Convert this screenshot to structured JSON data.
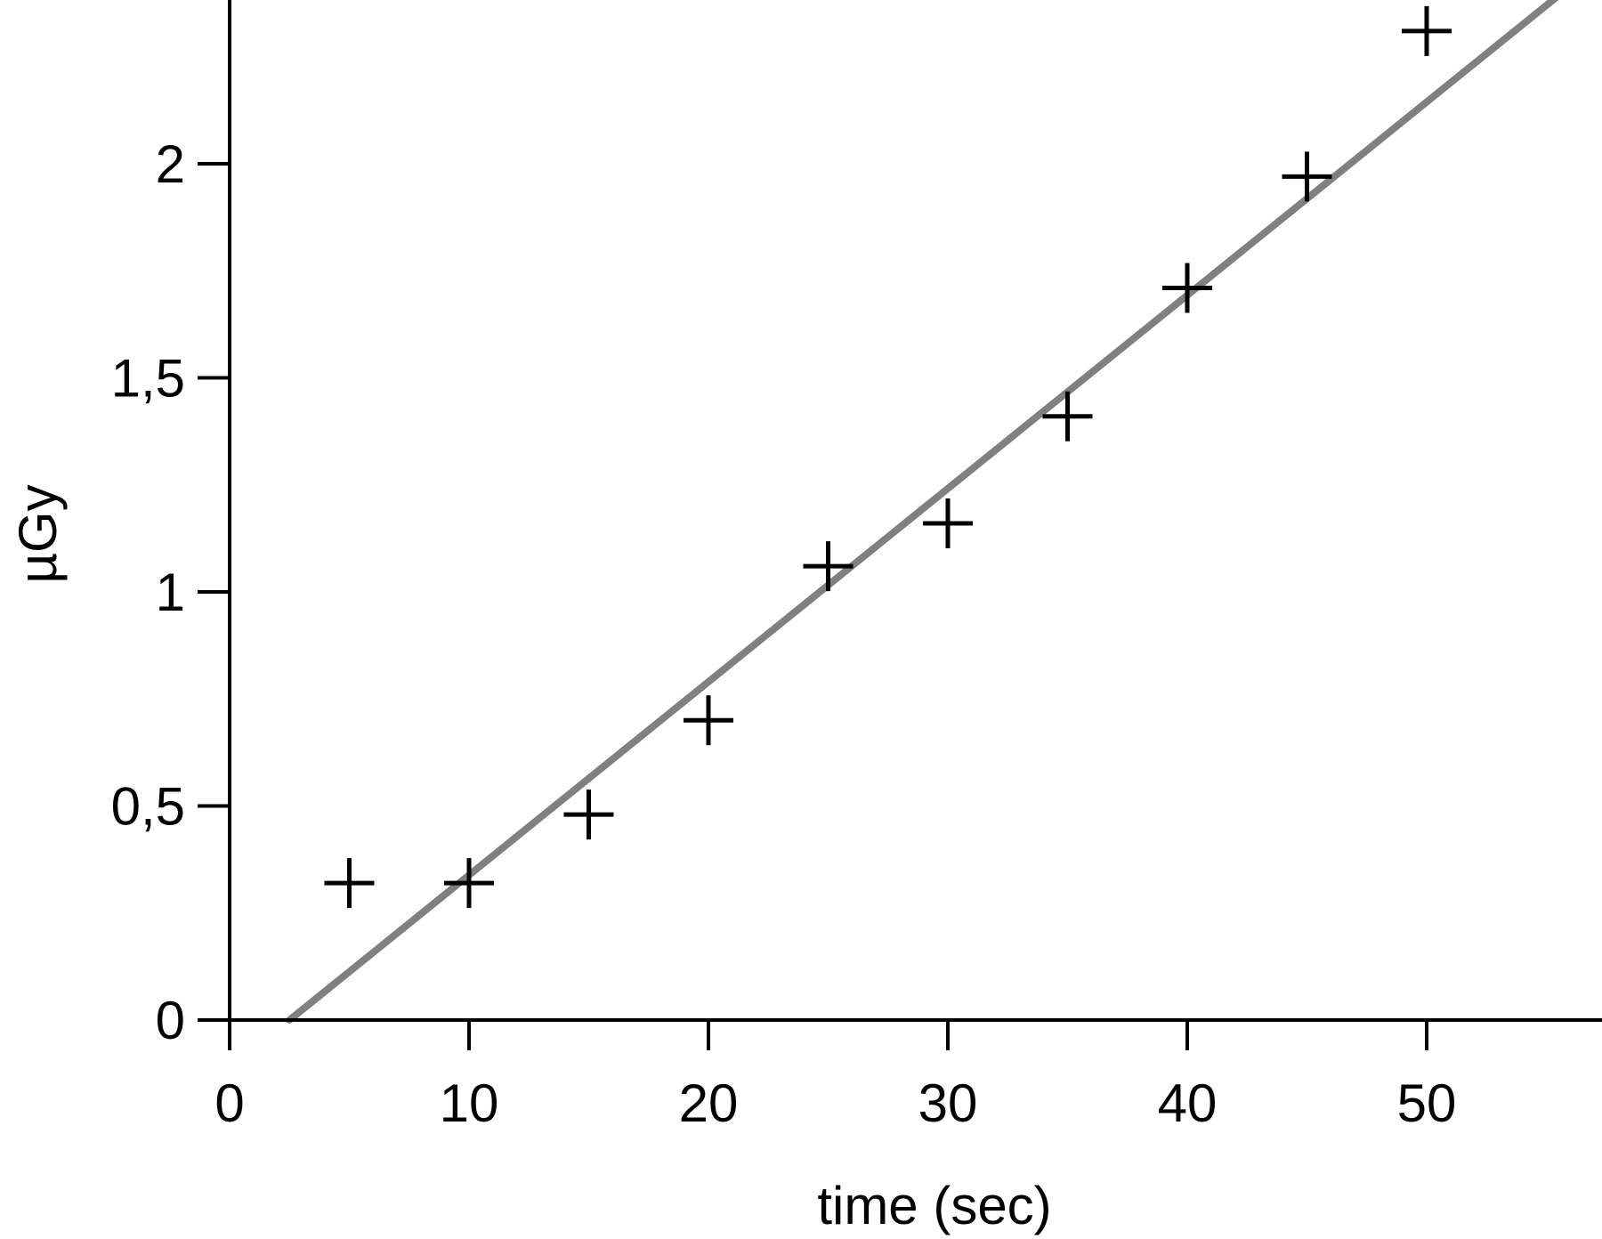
{
  "chart_data": {
    "type": "scatter",
    "title": "",
    "xlabel": "time (sec)",
    "ylabel": "µGy",
    "xlim": [
      0,
      58
    ],
    "ylim": [
      0,
      2.4
    ],
    "x_ticks": [
      {
        "value": 0,
        "label": "0"
      },
      {
        "value": 10,
        "label": "10"
      },
      {
        "value": 20,
        "label": "20"
      },
      {
        "value": 30,
        "label": "30"
      },
      {
        "value": 40,
        "label": "40"
      },
      {
        "value": 50,
        "label": "50"
      }
    ],
    "y_ticks": [
      {
        "value": 0,
        "label": "0"
      },
      {
        "value": 0.5,
        "label": "0,5"
      },
      {
        "value": 1,
        "label": "1"
      },
      {
        "value": 1.5,
        "label": "1,5"
      },
      {
        "value": 2,
        "label": "2"
      }
    ],
    "grid": false,
    "series": [
      {
        "marker": "plus",
        "color": "#000000",
        "points": [
          {
            "x": 5,
            "y": 0.32
          },
          {
            "x": 10,
            "y": 0.32
          },
          {
            "x": 15,
            "y": 0.48
          },
          {
            "x": 20,
            "y": 0.7
          },
          {
            "x": 25,
            "y": 1.06
          },
          {
            "x": 30,
            "y": 1.16
          },
          {
            "x": 35,
            "y": 1.41
          },
          {
            "x": 40,
            "y": 1.71
          },
          {
            "x": 45,
            "y": 1.97
          },
          {
            "x": 50,
            "y": 2.31
          }
        ]
      }
    ],
    "fit_line": {
      "color": "#808080",
      "points": [
        {
          "x": 2.5,
          "y": 0
        },
        {
          "x": 55,
          "y": 2.37
        }
      ]
    }
  }
}
